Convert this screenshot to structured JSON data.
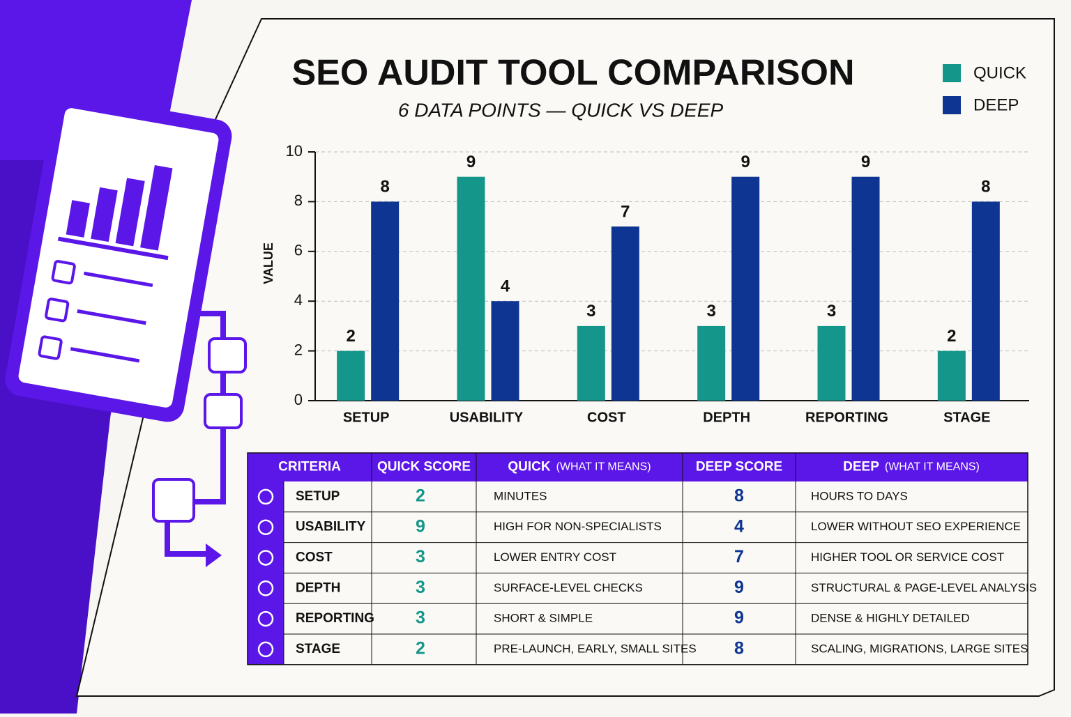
{
  "chart_data": {
    "type": "bar",
    "title": "SEO AUDIT TOOL COMPARISON",
    "subtitle": "6 DATA POINTS — QUICK VS DEEP",
    "y_label": "VALUE",
    "categories": [
      "SETUP",
      "USABILITY",
      "COST",
      "DEPTH",
      "REPORTING",
      "STAGE"
    ],
    "series": [
      {
        "name": "QUICK",
        "color": "#14968a",
        "values": [
          2,
          9,
          3,
          3,
          3,
          2
        ]
      },
      {
        "name": "DEEP",
        "color": "#0d3591",
        "values": [
          8,
          4,
          7,
          9,
          9,
          8
        ]
      }
    ],
    "ylim": [
      0,
      10
    ],
    "yticks": [
      0,
      2,
      4,
      6,
      8,
      10
    ],
    "grid": true,
    "legend": "top-right"
  },
  "table": {
    "headers": [
      "CRITERIA",
      "QUICK SCORE",
      [
        "QUICK",
        "(WHAT IT MEANS)"
      ],
      "DEEP SCORE",
      [
        "DEEP",
        "(WHAT IT MEANS)"
      ]
    ],
    "quick_meaning": [
      "MINUTES",
      "HIGH FOR NON-SPECIALISTS",
      "LOWER ENTRY COST",
      "SURFACE-LEVEL CHECKS",
      "SHORT & SIMPLE",
      "PRE-LAUNCH, EARLY, SMALL SITES"
    ],
    "deep_meaning": [
      "HOURS TO DAYS",
      "LOWER WITHOUT SEO EXPERIENCE",
      "HIGHER TOOL OR SERVICE COST",
      "STRUCTURAL & PAGE-LEVEL ANALYSIS",
      "DENSE & HIGHLY DETAILED",
      "SCALING, MIGRATIONS, LARGE SITES"
    ]
  }
}
